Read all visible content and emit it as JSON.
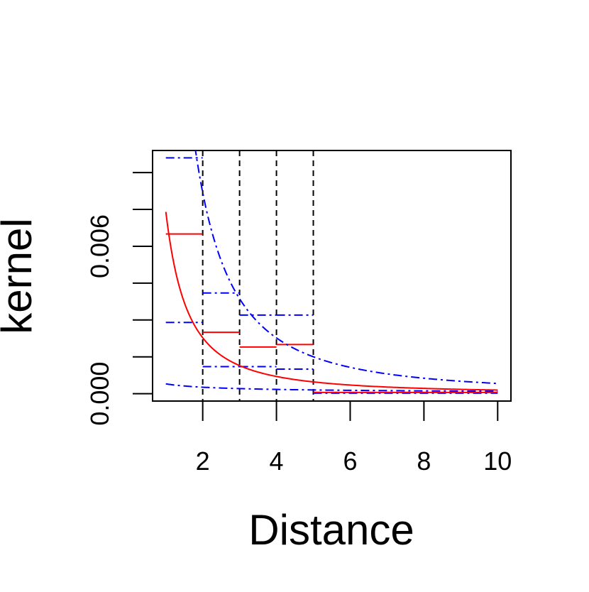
{
  "chart_data": {
    "type": "line",
    "title": "",
    "xlabel": "Distance",
    "ylabel": "kernel",
    "xlim": [
      0.64,
      10.36
    ],
    "ylim": [
      -0.0003,
      0.0099
    ],
    "x_ticks": [
      2,
      4,
      6,
      8,
      10
    ],
    "x_tick_labels": [
      "2",
      "4",
      "6",
      "8",
      "10"
    ],
    "y_ticks": [
      0.0,
      0.0015,
      0.003,
      0.0045,
      0.006,
      0.0075,
      0.009
    ],
    "y_tick_labels": [
      "0.000",
      "",
      "",
      "",
      "0.006",
      "",
      ""
    ],
    "grid": false,
    "legend": "none",
    "colors": {
      "estimate": "#ff0000",
      "bounds": "#0000ff",
      "breaks": "#000000"
    },
    "breaks": [
      2,
      3,
      4,
      5
    ],
    "curves": [
      {
        "role": "estimate",
        "color": "#ff0000",
        "style": "solid",
        "k": 0.0074,
        "power": 1.7,
        "x_from": 1,
        "x_to": 10
      },
      {
        "role": "upper",
        "color": "#0000ff",
        "style": "dashdot",
        "k": 0.0295,
        "power": 1.85,
        "x_from": 1,
        "x_to": 10
      },
      {
        "role": "lower",
        "color": "#0000ff",
        "style": "dashdot",
        "k": 0.0004,
        "power": 0.6,
        "x_from": 1,
        "x_to": 10
      }
    ],
    "steps": [
      {
        "x0": 1,
        "x1": 2,
        "estimate": 0.0065,
        "upper": 0.0096,
        "lower": 0.0029
      },
      {
        "x0": 2,
        "x1": 3,
        "estimate": 0.0025,
        "upper": 0.0041,
        "lower": 0.0011
      },
      {
        "x0": 3,
        "x1": 4,
        "estimate": 0.0019,
        "upper": 0.0032,
        "lower": 0.0011
      },
      {
        "x0": 4,
        "x1": 5,
        "estimate": 0.002,
        "upper": 0.0032,
        "lower": 0.001
      },
      {
        "x0": 5,
        "x1": 10,
        "estimate": 5e-05,
        "upper": 5e-05,
        "lower": 2e-05
      }
    ]
  }
}
